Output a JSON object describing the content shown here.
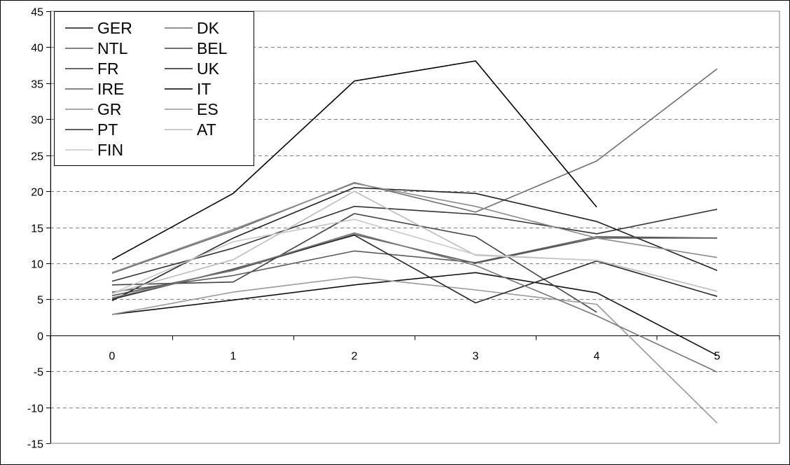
{
  "chart_data": {
    "type": "line",
    "title": "",
    "xlabel": "",
    "ylabel": "",
    "x": [
      0,
      1,
      2,
      3,
      4,
      5
    ],
    "xlim": [
      0,
      5
    ],
    "ylim": [
      -15,
      45
    ],
    "yticks": [
      -15,
      -10,
      -5,
      0,
      5,
      10,
      15,
      20,
      25,
      30,
      35,
      40,
      45
    ],
    "grid": "horizontal dashed",
    "legend_position": "top-left",
    "series": [
      {
        "name": "GER",
        "color": "#111111",
        "values": [
          2.9,
          4.9,
          7.0,
          8.7,
          5.9,
          -2.8
        ]
      },
      {
        "name": "DK",
        "color": "#6e6e6e",
        "values": [
          8.6,
          14.5,
          21.2,
          17.1,
          24.2,
          37.0
        ]
      },
      {
        "name": "NTL",
        "color": "#555555",
        "values": [
          5.5,
          9.0,
          14.0,
          10.0,
          13.5,
          13.5
        ]
      },
      {
        "name": "BEL",
        "color": "#444444",
        "values": [
          7.0,
          7.4,
          16.9,
          13.7,
          3.2,
          null
        ]
      },
      {
        "name": "FR",
        "color": "#333333",
        "values": [
          7.5,
          12.1,
          17.9,
          16.8,
          14.1,
          17.5
        ]
      },
      {
        "name": "UK",
        "color": "#222222",
        "values": [
          4.8,
          13.5,
          20.5,
          19.7,
          15.8,
          9.0
        ]
      },
      {
        "name": "IRE",
        "color": "#5a5a5a",
        "values": [
          6.0,
          8.3,
          11.7,
          10.1,
          13.7,
          13.5
        ]
      },
      {
        "name": "IT",
        "color": "#000000",
        "values": [
          10.5,
          19.7,
          35.3,
          38.1,
          17.8,
          null
        ]
      },
      {
        "name": "GR",
        "color": "#8a8a8a",
        "values": [
          8.7,
          14.7,
          21.1,
          17.9,
          13.5,
          10.8
        ]
      },
      {
        "name": "ES",
        "color": "#999999",
        "values": [
          2.9,
          6.0,
          8.1,
          6.3,
          4.3,
          -12.2
        ]
      },
      {
        "name": "PT",
        "color": "#2a2a2a",
        "values": [
          5.0,
          9.2,
          13.9,
          4.5,
          10.3,
          5.4
        ]
      },
      {
        "name": "AT",
        "color": "#bbbbbb",
        "values": [
          5.8,
          10.5,
          20.0,
          11.1,
          10.4,
          6.1
        ]
      },
      {
        "name": "FIN",
        "color": "#c8c8c8",
        "values": [
          5.8,
          13.0,
          16.1,
          11.2,
          10.4,
          null
        ]
      },
      {
        "name": "",
        "color": "#777777",
        "values": [
          5.2,
          9.1,
          14.2,
          9.7,
          2.7,
          -5.1
        ]
      }
    ]
  }
}
